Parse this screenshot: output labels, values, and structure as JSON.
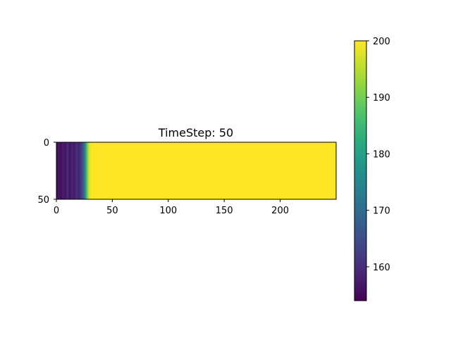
{
  "chart_data": {
    "type": "heatmap",
    "title": "TimeStep: 50",
    "xlabel": "",
    "ylabel": "",
    "x_ticks": [
      0,
      50,
      100,
      150,
      200
    ],
    "y_ticks": [
      0,
      50
    ],
    "xlim": [
      0,
      250
    ],
    "ylim": [
      50,
      0
    ],
    "colormap": "viridis",
    "colorbar": {
      "vmin": 154,
      "vmax": 200,
      "ticks": [
        160,
        170,
        180,
        190,
        200
      ]
    },
    "column_profile": {
      "x": [
        0,
        2,
        4,
        6,
        8,
        10,
        12,
        14,
        16,
        18,
        20,
        22,
        24,
        26,
        28,
        30,
        32,
        250
      ],
      "values": [
        155,
        157,
        155,
        158,
        156,
        160,
        156,
        159,
        157,
        161,
        158,
        162,
        166,
        178,
        192,
        199,
        200,
        200
      ]
    },
    "grid": false
  }
}
